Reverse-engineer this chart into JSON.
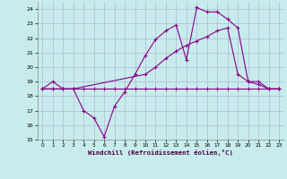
{
  "xlabel": "Windchill (Refroidissement éolien,°C)",
  "bg_color": "#c8ecec",
  "grid_color": "#b0b8d8",
  "line_color": "#880088",
  "xlim": [
    -0.5,
    23.5
  ],
  "ylim": [
    15,
    24.5
  ],
  "xticks": [
    0,
    1,
    2,
    3,
    4,
    5,
    6,
    7,
    8,
    9,
    10,
    11,
    12,
    13,
    14,
    15,
    16,
    17,
    18,
    19,
    20,
    21,
    22,
    23
  ],
  "yticks": [
    15,
    16,
    17,
    18,
    19,
    20,
    21,
    22,
    23,
    24
  ],
  "line1_x": [
    0,
    1,
    2,
    3,
    4,
    5,
    6,
    7,
    8,
    9,
    10,
    11,
    12,
    13,
    14,
    15,
    16,
    17,
    18,
    19,
    20,
    21,
    22,
    23
  ],
  "line1_y": [
    18.5,
    18.5,
    18.5,
    18.5,
    18.5,
    18.5,
    18.5,
    18.5,
    18.5,
    18.5,
    18.5,
    18.5,
    18.5,
    18.5,
    18.5,
    18.5,
    18.5,
    18.5,
    18.5,
    18.5,
    18.5,
    18.5,
    18.5,
    18.5
  ],
  "line2_x": [
    0,
    1,
    2,
    3,
    4,
    5,
    6,
    7,
    8,
    9,
    10,
    11,
    12,
    13,
    14,
    15,
    16,
    17,
    18,
    19,
    20,
    21,
    22,
    23
  ],
  "line2_y": [
    18.5,
    19.0,
    18.5,
    18.5,
    17.0,
    16.5,
    15.2,
    17.3,
    18.3,
    19.5,
    20.8,
    21.9,
    22.5,
    22.9,
    20.5,
    24.1,
    23.8,
    23.8,
    23.3,
    22.7,
    19.0,
    18.8,
    18.5,
    18.5
  ],
  "line3_x": [
    0,
    1,
    2,
    3,
    10,
    11,
    12,
    13,
    14,
    15,
    16,
    17,
    18,
    19,
    20,
    21,
    22,
    23
  ],
  "line3_y": [
    18.5,
    18.5,
    18.5,
    18.5,
    19.5,
    20.0,
    20.6,
    21.1,
    21.5,
    21.8,
    22.1,
    22.5,
    22.7,
    19.5,
    19.0,
    19.0,
    18.5,
    18.5
  ]
}
